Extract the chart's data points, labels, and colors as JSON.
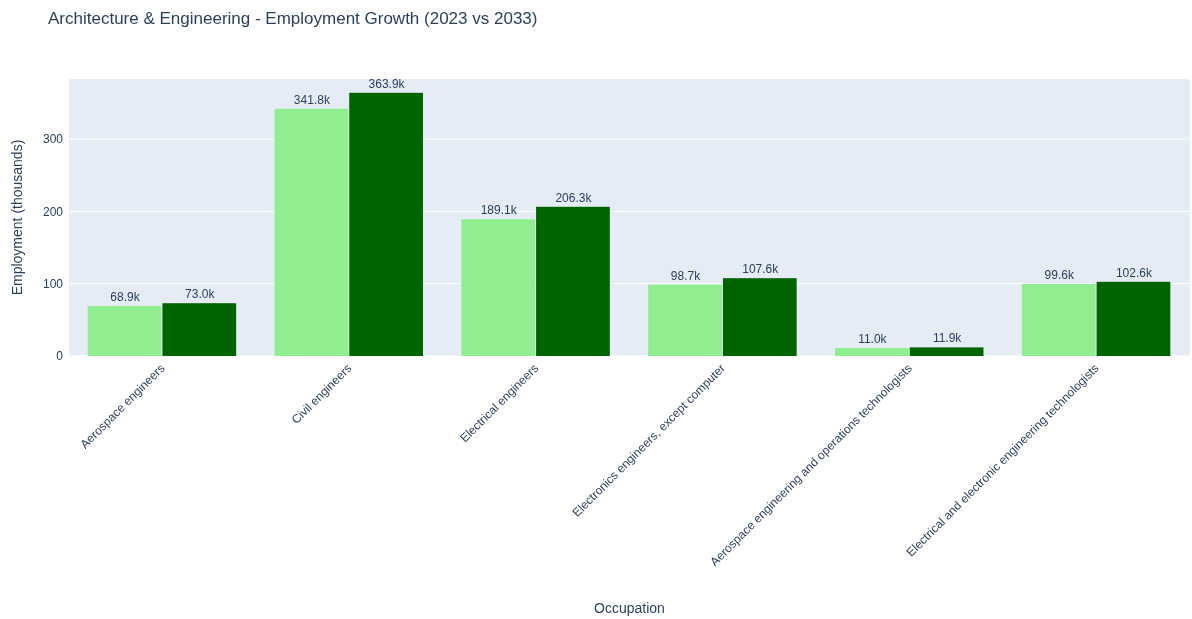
{
  "chart_data": {
    "type": "bar",
    "title": "Architecture & Engineering - Employment Growth (2023 vs 2033)",
    "xlabel": "Occupation",
    "ylabel": "Employment (thousands)",
    "categories": [
      "Aerospace engineers",
      "Civil engineers",
      "Electrical engineers",
      "Electronics engineers, except computer",
      "Aerospace engineering and operations technologists",
      "Electrical and electronic engineering technologists"
    ],
    "series": [
      {
        "color": "#90ee90",
        "values": [
          68.9,
          341.8,
          189.1,
          98.7,
          11.0,
          99.6
        ],
        "value_labels": [
          "68.9k",
          "341.8k",
          "189.1k",
          "98.7k",
          "11.0k",
          "99.6k"
        ]
      },
      {
        "color": "#006400",
        "values": [
          73.0,
          363.9,
          206.3,
          107.6,
          11.9,
          102.6
        ],
        "value_labels": [
          "73.0k",
          "363.9k",
          "206.3k",
          "107.6k",
          "11.9k",
          "102.6k"
        ]
      }
    ],
    "ylim": [
      0,
      383
    ],
    "yticks": [
      0,
      100,
      200,
      300
    ],
    "grid": "y"
  }
}
